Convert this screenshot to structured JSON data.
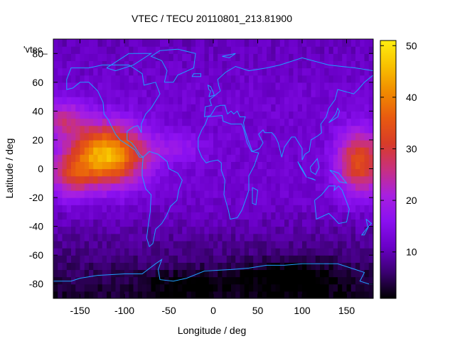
{
  "chart_data": {
    "type": "heatmap",
    "title": "VTEC / TECU 20110801_213.81900",
    "xlabel": "Longitude / deg",
    "ylabel": "Latitude / deg",
    "xlim": [
      -180,
      180
    ],
    "ylim": [
      -90,
      90
    ],
    "x_ticks": [
      -150,
      -100,
      -50,
      0,
      50,
      100,
      150
    ],
    "y_ticks": [
      -80,
      -60,
      -40,
      -20,
      0,
      20,
      40,
      60,
      80
    ],
    "legend_entry": "'vtec_",
    "colorbar": {
      "range": [
        1,
        51
      ],
      "ticks": [
        10,
        20,
        30,
        40,
        50
      ],
      "palette": [
        "#000000",
        "#3a0070",
        "#6a00c8",
        "#8a10f0",
        "#a820e0",
        "#c83080",
        "#d83c28",
        "#e85a10",
        "#f08a00",
        "#f8c000",
        "#ffee10"
      ]
    },
    "peak_regions": [
      {
        "lon": -120,
        "lat": 10,
        "value": 42
      },
      {
        "lon": -155,
        "lat": -5,
        "value": 35
      },
      {
        "lon": 160,
        "lat": 10,
        "value": 33
      }
    ],
    "coastline_color": "#1ea0ff"
  }
}
